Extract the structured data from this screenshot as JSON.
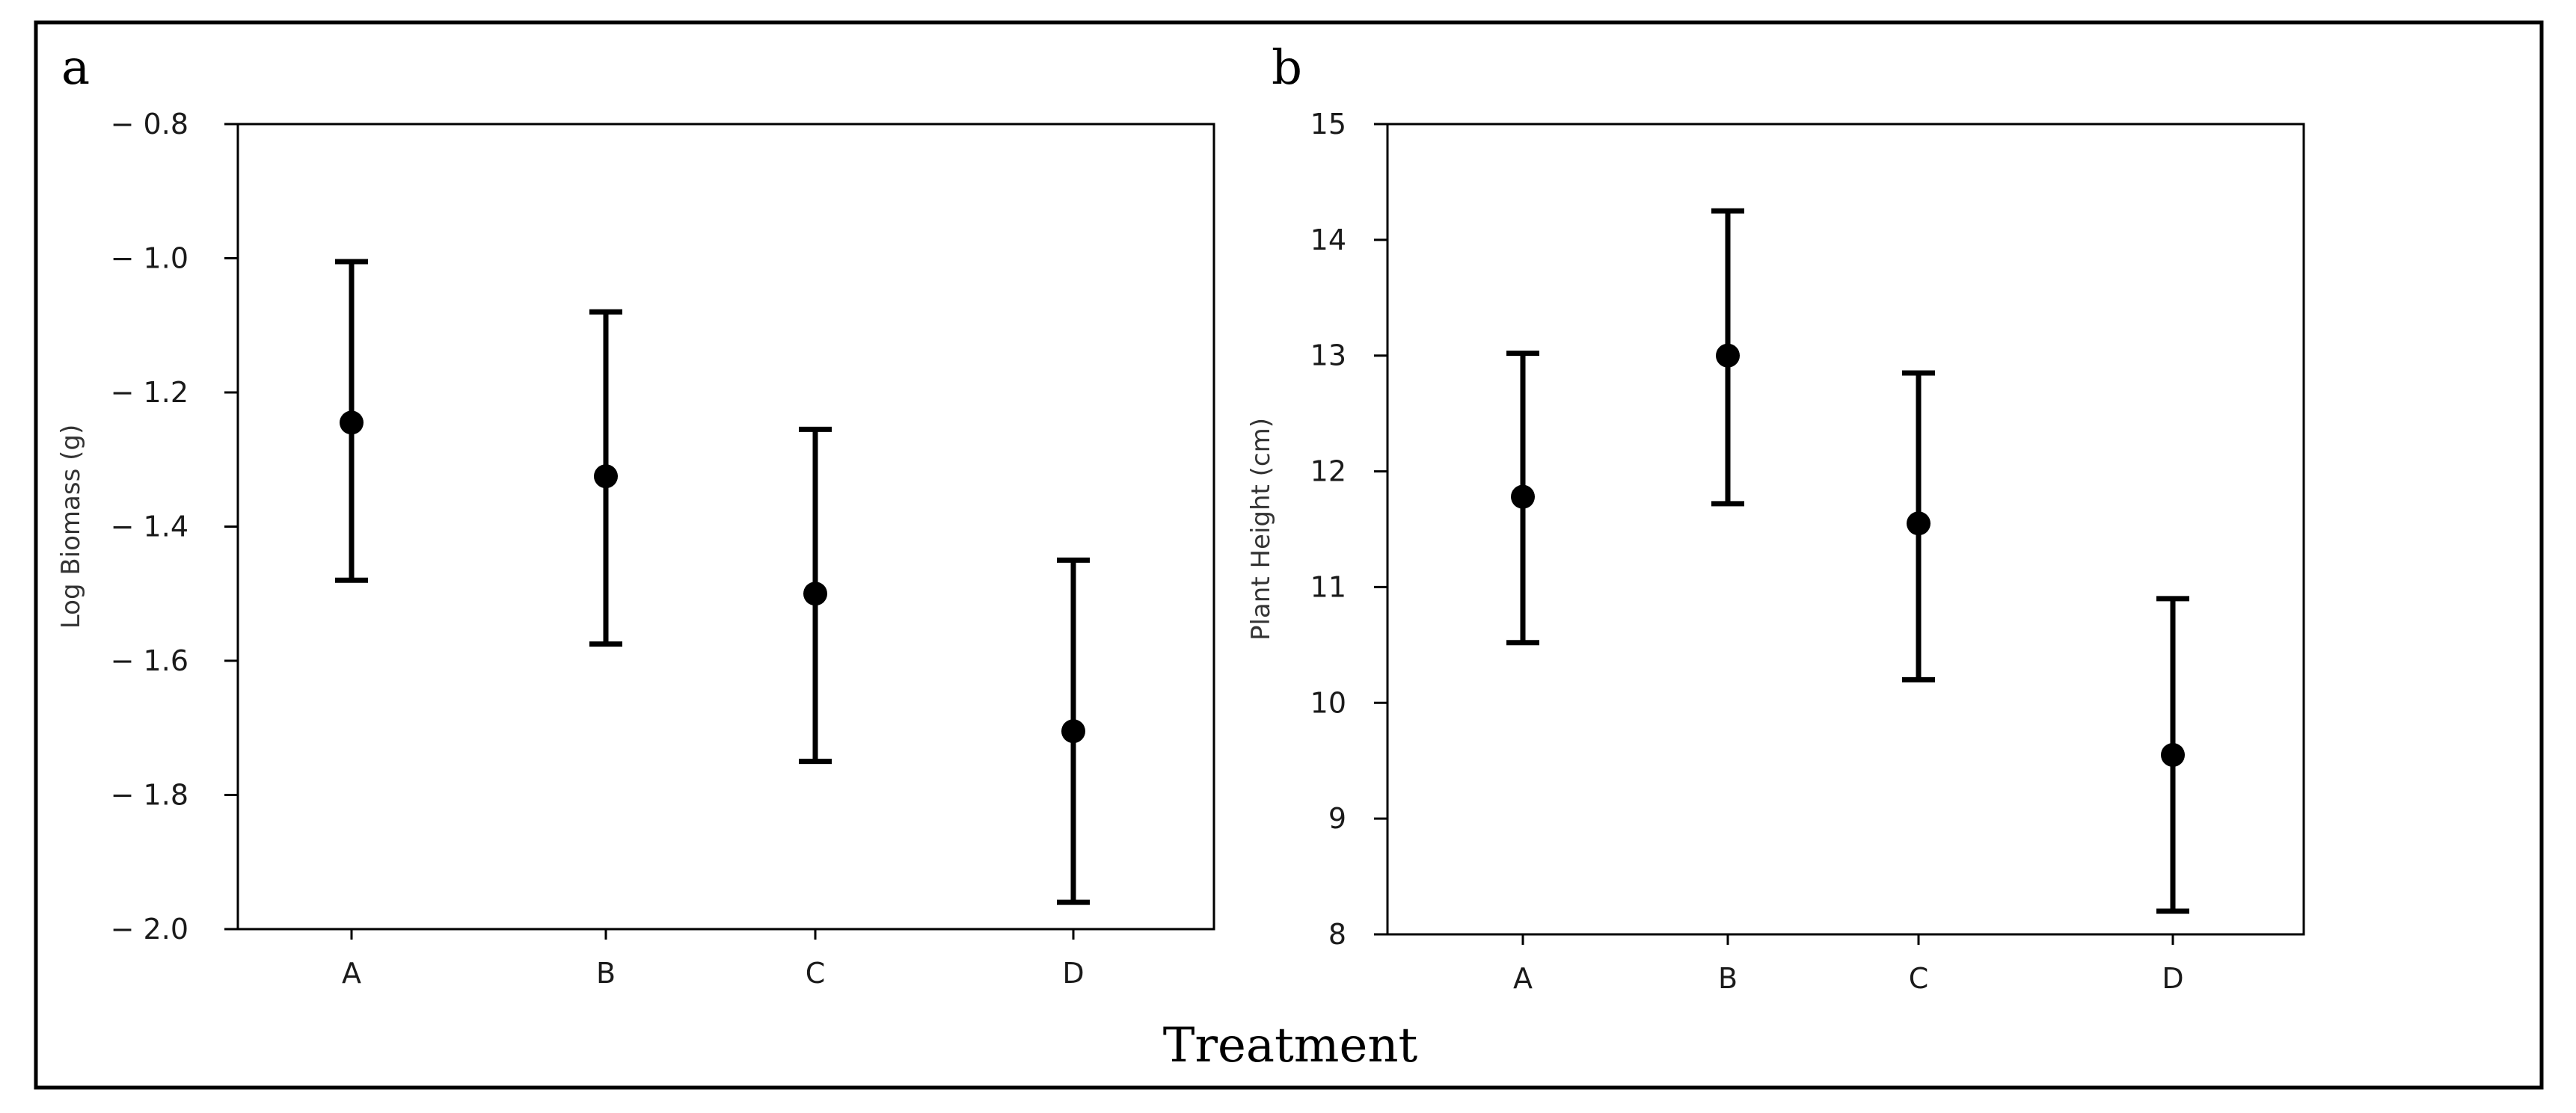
{
  "figure": {
    "xlabel": "Treatment",
    "colors": {
      "frame": "#000000",
      "axes": "#000000",
      "marker": "#000000",
      "errorbar": "#000000"
    }
  },
  "chart_data": [
    {
      "panel": "a",
      "type": "scatter",
      "subtype": "point-with-error-bars",
      "categories": [
        "A",
        "B",
        "C",
        "D"
      ],
      "values": [
        -1.245,
        -1.325,
        -1.5,
        -1.705
      ],
      "error_lower": [
        -1.48,
        -1.575,
        -1.75,
        -1.96
      ],
      "error_upper": [
        -1.005,
        -1.08,
        -1.255,
        -1.45
      ],
      "ylabel": "Log Biomass (g)",
      "ylim": [
        -2.0,
        -0.8
      ],
      "yticks": [
        -0.8,
        -1.0,
        -1.2,
        -1.4,
        -1.6,
        -1.8,
        -2.0
      ],
      "ytick_labels": [
        "− 0.8",
        "− 1.0",
        "− 1.2",
        "− 1.4",
        "− 1.6",
        "− 1.8",
        "− 2.0"
      ],
      "grid": false
    },
    {
      "panel": "b",
      "type": "scatter",
      "subtype": "point-with-error-bars",
      "categories": [
        "A",
        "B",
        "C",
        "D"
      ],
      "values": [
        11.78,
        13.0,
        11.55,
        9.55
      ],
      "error_lower": [
        10.52,
        11.72,
        10.2,
        8.2
      ],
      "error_upper": [
        13.02,
        14.25,
        12.85,
        10.9
      ],
      "ylabel": "Plant Height (cm)",
      "ylim": [
        8,
        15
      ],
      "yticks": [
        8,
        9,
        10,
        11,
        12,
        13,
        14,
        15
      ],
      "ytick_labels": [
        "8",
        "9",
        "10",
        "11",
        "12",
        "13",
        "14",
        "15"
      ],
      "grid": false
    }
  ]
}
